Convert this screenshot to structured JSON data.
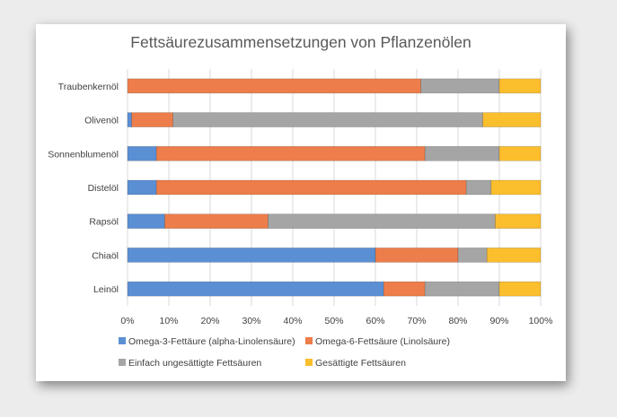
{
  "chart_data": {
    "type": "bar",
    "orientation": "horizontal",
    "stacked": "percent",
    "title": "Fettsäurezusammensetzungen von Pflanzenölen",
    "categories": [
      "Traubenkernöl",
      "Olivenöl",
      "Sonnenblumenöl",
      "Distelöl",
      "Rapsöl",
      "Chiaöl",
      "Leinöl"
    ],
    "series": [
      {
        "name": "Omega-3-Fettäure (alpha-Linolensäure)",
        "color": "#5b8fd4",
        "values": [
          0,
          1,
          7,
          7,
          9,
          60,
          62
        ]
      },
      {
        "name": "Omega-6-Fettsäure (Linolsäure)",
        "color": "#ed7d4a",
        "values": [
          71,
          10,
          65,
          75,
          25,
          20,
          10
        ]
      },
      {
        "name": "Einfach ungesättigte Fettsäuren",
        "color": "#a5a5a5",
        "values": [
          19,
          75,
          18,
          6,
          55,
          7,
          18
        ]
      },
      {
        "name": "Gesättigte Fettsäuren",
        "color": "#fbbe2d",
        "values": [
          10,
          14,
          10,
          12,
          11,
          13,
          10
        ]
      }
    ],
    "xlim": [
      0,
      100
    ],
    "xticks": [
      "0%",
      "10%",
      "20%",
      "30%",
      "40%",
      "50%",
      "60%",
      "70%",
      "80%",
      "90%",
      "100%"
    ],
    "xlabel": "",
    "ylabel": "",
    "grid": "vertical",
    "legend": "bottom"
  }
}
